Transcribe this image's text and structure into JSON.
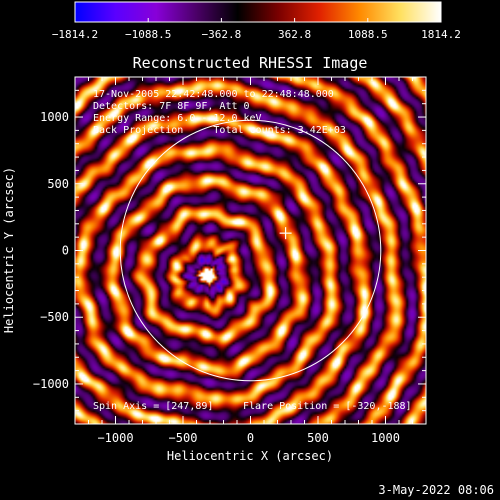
{
  "chart_data": {
    "type": "heatmap",
    "title": "Reconstructed RHESSI Image",
    "xlabel": "Heliocentric X (arcsec)",
    "ylabel": "Heliocentric Y (arcsec)",
    "xlim": [
      -1300,
      1300
    ],
    "ylim": [
      -1300,
      1300
    ],
    "x_ticks": [
      -1000,
      -500,
      0,
      500,
      1000
    ],
    "y_ticks": [
      -1000,
      -500,
      0,
      500,
      1000
    ],
    "colorbar": {
      "range": [
        -1814.2,
        1814.2
      ],
      "tick_values": [
        -1814.2,
        -1088.5,
        -362.8,
        362.8,
        1088.5,
        1814.2
      ],
      "tick_labels": [
        "−1814.2",
        "−1088.5",
        "−362.8",
        "362.8",
        "1088.5",
        "1814.2"
      ],
      "colors": [
        "#0000ff",
        "#5a00ff",
        "#8800d8",
        "#4a0066",
        "#000000",
        "#7a0000",
        "#e02000",
        "#ff8a00",
        "#ffe060",
        "#ffffff"
      ]
    },
    "annotations": [
      "17-Nov-2005 22:42:48.000 to 22:48:48.000",
      "Detectors: 7F 8F 9F, Att 0",
      "Energy Range: 6.0 - 12.0 keV",
      "Back Projection     Total counts: 3.42E+03"
    ],
    "bottom_annotations": {
      "spin_axis": "Spin Axis = [247,89]",
      "flare_position": "Flare Position = [-320,-188]"
    },
    "source_center": [
      -320,
      -188
    ],
    "solar_disk": {
      "center": [
        0,
        0
      ],
      "radius": 965
    },
    "cross_marker": [
      260,
      130
    ]
  },
  "footer": {
    "date": "3-May-2022 08:06"
  }
}
